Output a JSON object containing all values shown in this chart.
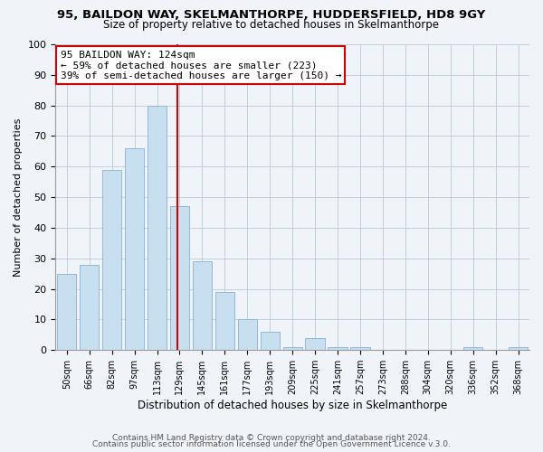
{
  "title": "95, BAILDON WAY, SKELMANTHORPE, HUDDERSFIELD, HD8 9GY",
  "subtitle": "Size of property relative to detached houses in Skelmanthorpe",
  "xlabel": "Distribution of detached houses by size in Skelmanthorpe",
  "ylabel": "Number of detached properties",
  "bar_labels": [
    "50sqm",
    "66sqm",
    "82sqm",
    "97sqm",
    "113sqm",
    "129sqm",
    "145sqm",
    "161sqm",
    "177sqm",
    "193sqm",
    "209sqm",
    "225sqm",
    "241sqm",
    "257sqm",
    "273sqm",
    "288sqm",
    "304sqm",
    "320sqm",
    "336sqm",
    "352sqm",
    "368sqm"
  ],
  "bar_values": [
    25,
    28,
    59,
    66,
    80,
    47,
    29,
    19,
    10,
    6,
    1,
    4,
    1,
    1,
    0,
    0,
    0,
    0,
    1,
    0,
    1
  ],
  "bar_color": "#c8dff0",
  "bar_edge_color": "#90b8d8",
  "vline_color": "#cc0000",
  "annotation_title": "95 BAILDON WAY: 124sqm",
  "annotation_line1": "← 59% of detached houses are smaller (223)",
  "annotation_line2": "39% of semi-detached houses are larger (150) →",
  "annotation_box_color": "#ffffff",
  "annotation_box_edge": "#cc0000",
  "ylim": [
    0,
    100
  ],
  "footer1": "Contains HM Land Registry data © Crown copyright and database right 2024.",
  "footer2": "Contains public sector information licensed under the Open Government Licence v.3.0.",
  "bg_color": "#f0f4f8"
}
